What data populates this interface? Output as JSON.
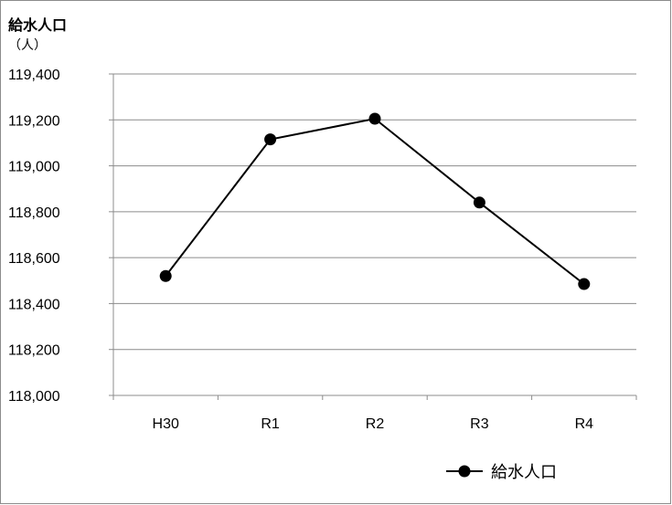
{
  "chart_data": {
    "type": "line",
    "title": "給水人口",
    "ylabel": "（人）",
    "xlabel": "",
    "categories": [
      "H30",
      "R1",
      "R2",
      "R3",
      "R4"
    ],
    "y_tick_labels": [
      "119,400",
      "119,200",
      "119,000",
      "118,800",
      "118,600",
      "118,400",
      "118,200",
      "118,000"
    ],
    "ylim": [
      118000,
      119400
    ],
    "y_tick_step": 200,
    "grid": true,
    "legend_position": "bottom-right",
    "series": [
      {
        "name": "給水人口",
        "values": [
          118520,
          119115,
          119205,
          118840,
          118485
        ],
        "color": "#000000",
        "marker": "circle"
      }
    ]
  }
}
